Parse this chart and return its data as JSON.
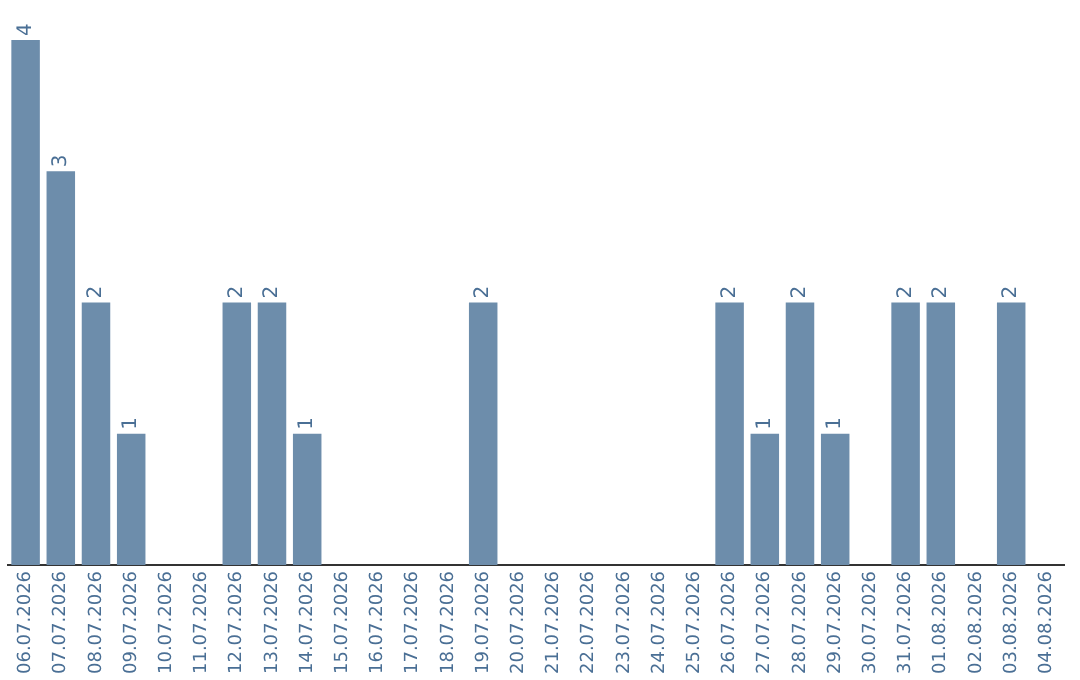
{
  "chart_data": {
    "type": "bar",
    "categories": [
      "06.07.2026",
      "07.07.2026",
      "08.07.2026",
      "09.07.2026",
      "10.07.2026",
      "11.07.2026",
      "12.07.2026",
      "13.07.2026",
      "14.07.2026",
      "15.07.2026",
      "16.07.2026",
      "17.07.2026",
      "18.07.2026",
      "19.07.2026",
      "20.07.2026",
      "21.07.2026",
      "22.07.2026",
      "23.07.2026",
      "24.07.2026",
      "25.07.2026",
      "26.07.2026",
      "27.07.2026",
      "28.07.2026",
      "29.07.2026",
      "30.07.2026",
      "31.07.2026",
      "01.08.2026",
      "02.08.2026",
      "03.08.2026",
      "04.08.2026"
    ],
    "values": [
      4,
      3,
      2,
      1,
      0,
      0,
      2,
      2,
      1,
      0,
      0,
      0,
      0,
      2,
      0,
      0,
      0,
      0,
      0,
      0,
      2,
      1,
      2,
      1,
      0,
      2,
      2,
      0,
      2,
      0
    ],
    "value_labels": [
      "4",
      "3",
      "2",
      "1",
      null,
      null,
      "2",
      "2",
      "1",
      null,
      null,
      null,
      null,
      "2",
      null,
      null,
      null,
      null,
      null,
      null,
      "2",
      "1",
      "2",
      "1",
      null,
      "2",
      "2",
      null,
      "2",
      null
    ],
    "color": "#6d8dab",
    "grid": false,
    "legend": false
  }
}
